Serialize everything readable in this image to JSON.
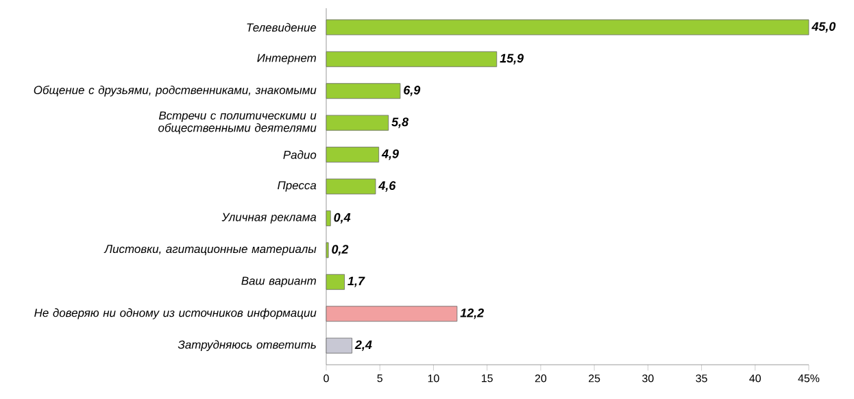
{
  "chart_data": {
    "type": "bar",
    "orientation": "horizontal",
    "categories": [
      "Телевидение",
      "Интернет",
      "Общение с друзьями, родственниками, знакомыми",
      "Встречи с политическими и общественными деятелями",
      "Радио",
      "Пресса",
      "Уличная реклама",
      "Листовки, агитационные материалы",
      "Ваш вариант",
      "Не доверяю ни одному из источников информации",
      "Затрудняюсь ответить"
    ],
    "values": [
      45.0,
      15.9,
      6.9,
      5.8,
      4.9,
      4.6,
      0.4,
      0.2,
      1.7,
      12.2,
      2.4
    ],
    "colors": [
      "#99cc33",
      "#99cc33",
      "#99cc33",
      "#99cc33",
      "#99cc33",
      "#99cc33",
      "#99cc33",
      "#99cc33",
      "#99cc33",
      "#f2a0a0",
      "#c8c8d4"
    ],
    "value_labels": [
      "45,0",
      "15,9",
      "6,9",
      "5,8",
      "4,9",
      "4,6",
      "0,4",
      "0,2",
      "1,7",
      "12,2",
      "2,4"
    ],
    "xlim": [
      0,
      45
    ],
    "xticks": [
      0,
      5,
      10,
      15,
      20,
      25,
      30,
      35,
      40,
      {
        "value": 45,
        "label": "45%"
      }
    ]
  }
}
